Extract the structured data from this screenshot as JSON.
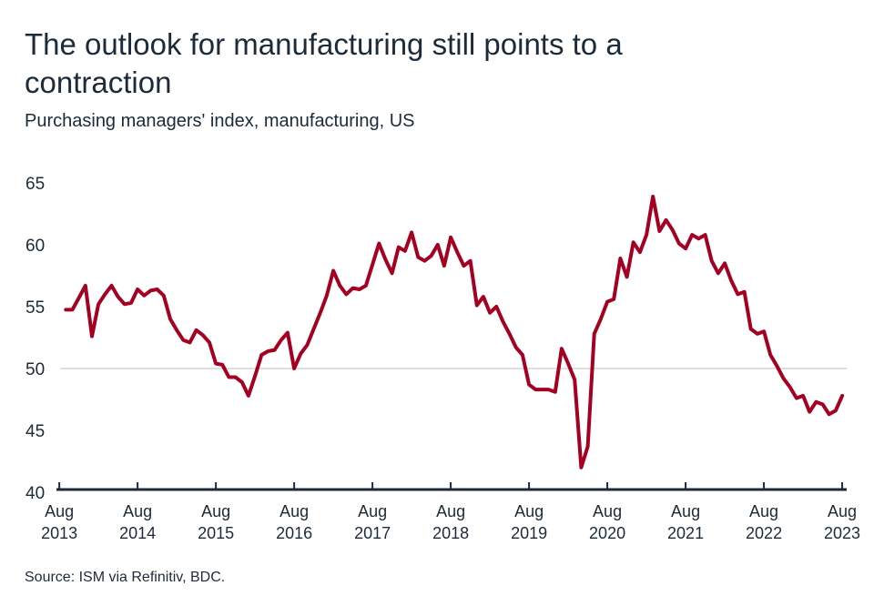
{
  "title": "The outlook for manufacturing still points to a contraction",
  "subtitle": "Purchasing managers' index, manufacturing, US",
  "source": "Source: ISM via Refinitiv, BDC.",
  "colors": {
    "line": "#a50021",
    "axis": "#1c2b3a",
    "gridline": "#d9d3cf"
  },
  "chart_data": {
    "type": "line",
    "title": "The outlook for manufacturing still points to a contraction",
    "subtitle": "Purchasing managers' index, manufacturing, US",
    "xlabel": "",
    "ylabel": "",
    "ylim": [
      40,
      65
    ],
    "yticks": [
      40,
      45,
      50,
      55,
      60,
      65
    ],
    "xticks": [
      {
        "month": "Aug",
        "year": "2013"
      },
      {
        "month": "Aug",
        "year": "2014"
      },
      {
        "month": "Aug",
        "year": "2015"
      },
      {
        "month": "Aug",
        "year": "2016"
      },
      {
        "month": "Aug",
        "year": "2017"
      },
      {
        "month": "Aug",
        "year": "2018"
      },
      {
        "month": "Aug",
        "year": "2019"
      },
      {
        "month": "Aug",
        "year": "2020"
      },
      {
        "month": "Aug",
        "year": "2021"
      },
      {
        "month": "Aug",
        "year": "2022"
      },
      {
        "month": "Aug",
        "year": "2023"
      }
    ],
    "gridlines": [
      50
    ],
    "x_start": "2013-09",
    "x_end": "2023-08",
    "frequency": "monthly",
    "series": [
      {
        "values": [
          54.75,
          54.75,
          55.7,
          56.7,
          52.6,
          55.2,
          56.0,
          56.7,
          55.8,
          55.2,
          55.3,
          56.4,
          55.9,
          56.3,
          56.4,
          55.9,
          54.0,
          53.1,
          52.3,
          52.1,
          53.1,
          52.7,
          52.1,
          50.4,
          50.3,
          49.3,
          49.3,
          48.9,
          47.8,
          49.4,
          51.1,
          51.4,
          51.5,
          52.3,
          52.9,
          50.0,
          51.2,
          51.9,
          53.2,
          54.5,
          55.9,
          57.9,
          56.7,
          56.0,
          56.5,
          56.4,
          56.7,
          58.4,
          60.1,
          58.8,
          57.7,
          59.8,
          59.5,
          61.0,
          59.0,
          58.7,
          59.1,
          60.0,
          58.3,
          60.6,
          59.4,
          58.3,
          58.7,
          55.1,
          55.8,
          54.5,
          55.0,
          53.8,
          52.8,
          51.7,
          51.1,
          48.7,
          48.3,
          48.3,
          48.3,
          48.1,
          51.6,
          50.4,
          49.1,
          42.0,
          43.7,
          52.8,
          54.0,
          55.4,
          55.6,
          58.9,
          57.4,
          60.2,
          59.4,
          60.8,
          63.9,
          61.1,
          62.0,
          61.2,
          60.1,
          59.7,
          60.8,
          60.5,
          60.8,
          58.7,
          57.7,
          58.5,
          57.1,
          56.0,
          56.2,
          53.2,
          52.8,
          53.0,
          51.1,
          50.2,
          49.2,
          48.5,
          47.6,
          47.8,
          46.5,
          47.3,
          47.1,
          46.3,
          46.6,
          47.8
        ]
      }
    ]
  }
}
